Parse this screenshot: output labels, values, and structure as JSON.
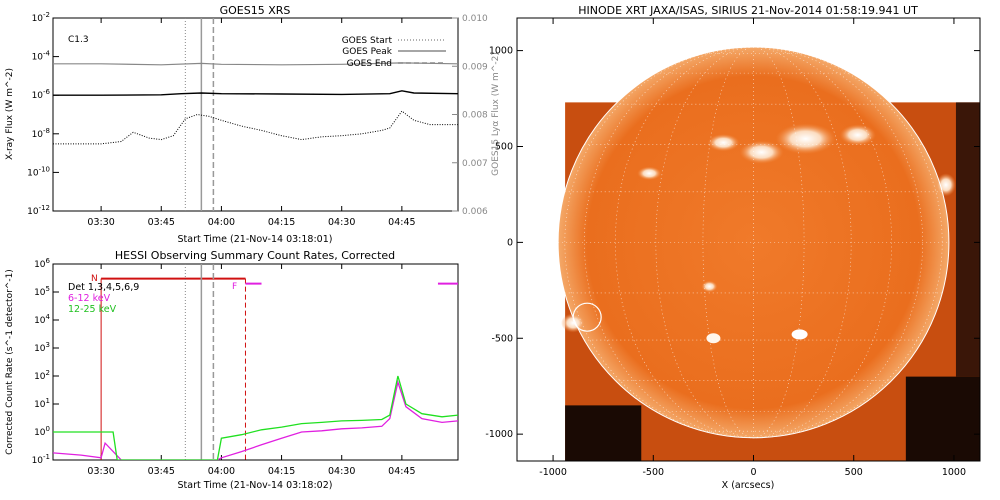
{
  "chart_data": [
    {
      "type": "line",
      "title": "GOES15 XRS",
      "xlabel": "Start Time (21-Nov-14 03:18:01)",
      "ylabel": "X-ray Flux (W m^-2)",
      "ylabel_right": "GOES15 Lyα Flux (W m^-2)",
      "x_ticks": [
        "03:30",
        "03:45",
        "04:00",
        "04:15",
        "04:30",
        "04:45"
      ],
      "y_ticks": [
        "10^-2",
        "10^-4",
        "10^-6",
        "10^-8",
        "10^-10",
        "10^-12"
      ],
      "y_ticks_right": [
        "0.010",
        "0.009",
        "0.008",
        "0.007",
        "0.006"
      ],
      "flare_class": "C1.3",
      "legend": [
        "GOES Start",
        "GOES Peak",
        "GOES End"
      ],
      "markers": {
        "start": "03:51",
        "peak": "03:55",
        "end": "03:58"
      },
      "colors": {
        "lya": "#888888",
        "long": "#000000",
        "short": "#000000"
      },
      "series": [
        {
          "name": "",
          "style": "gray",
          "x": [
            "03:18",
            "03:30",
            "03:45",
            "03:55",
            "04:00",
            "04:15",
            "04:30",
            "04:45",
            "04:59"
          ],
          "values": [
            0.00905,
            0.00905,
            0.00903,
            0.00906,
            0.00904,
            0.00903,
            0.00904,
            0.00907,
            0.00905
          ]
        },
        {
          "name": "",
          "style": "solid",
          "x": [
            "03:18",
            "03:30",
            "03:45",
            "03:50",
            "03:55",
            "04:00",
            "04:15",
            "04:30",
            "04:42",
            "04:45",
            "04:48",
            "04:59"
          ],
          "values": [
            1e-06,
            1e-06,
            1.05e-06,
            1.2e-06,
            1.3e-06,
            1.2e-06,
            1.15e-06,
            1.1e-06,
            1.2e-06,
            1.7e-06,
            1.3e-06,
            1.2e-06
          ]
        },
        {
          "name": "",
          "style": "dotted",
          "x": [
            "03:18",
            "03:25",
            "03:30",
            "03:35",
            "03:38",
            "03:42",
            "03:45",
            "03:48",
            "03:51",
            "03:54",
            "03:57",
            "04:00",
            "04:05",
            "04:10",
            "04:15",
            "04:20",
            "04:25",
            "04:30",
            "04:35",
            "04:40",
            "04:42",
            "04:45",
            "04:48",
            "04:52",
            "04:59"
          ],
          "values": [
            3e-09,
            3e-09,
            3e-09,
            4e-09,
            1.2e-08,
            6e-09,
            5e-09,
            8e-09,
            6e-08,
            1e-07,
            8e-08,
            5e-08,
            2.5e-08,
            1.5e-08,
            8e-09,
            5e-09,
            7e-09,
            8e-09,
            1e-08,
            1.5e-08,
            2e-08,
            1.5e-07,
            5e-08,
            3e-08,
            3e-08
          ]
        }
      ],
      "xlim": [
        "03:18",
        "04:59"
      ],
      "ylim": [
        1e-12,
        0.01
      ],
      "ylim_right": [
        0.006,
        0.01
      ],
      "yscale": "log"
    },
    {
      "type": "line",
      "title": "HESSI Observing Summary Count Rates, Corrected",
      "xlabel": "Start Time (21-Nov-14 03:18:02)",
      "ylabel": "Corrected Count Rate (s^-1 detector^-1)",
      "x_ticks": [
        "03:30",
        "03:45",
        "04:00",
        "04:15",
        "04:30",
        "04:45"
      ],
      "y_ticks": [
        "10^6",
        "10^5",
        "10^4",
        "10^3",
        "10^2",
        "10^1",
        "10^0",
        "10^-1"
      ],
      "legend": [
        {
          "label": "Det 1,3,4,5,6,9",
          "color": "#000000"
        },
        {
          "label": "6-12 keV",
          "color": "#e020e0"
        },
        {
          "label": "12-25 keV",
          "color": "#20e020"
        }
      ],
      "flags": {
        "night_label": "N",
        "flare_label": "F"
      },
      "markers": {
        "night_start": "03:30",
        "start": "03:51",
        "peak": "03:55",
        "end": "03:58",
        "flare_end": "04:06"
      },
      "colors": {
        "low": "#e020e0",
        "high": "#20e020",
        "flag": "#d01010"
      },
      "series": [
        {
          "name": "6-12 keV",
          "x": [
            "03:18",
            "03:25",
            "03:30",
            "03:31",
            "03:35",
            "03:40",
            "03:45",
            "03:50",
            "03:55",
            "03:59",
            "04:00",
            "04:05",
            "04:10",
            "04:15",
            "04:20",
            "04:25",
            "04:30",
            "04:35",
            "04:40",
            "04:42",
            "04:44",
            "04:46",
            "04:50",
            "04:55",
            "04:59"
          ],
          "values": [
            0.18,
            0.15,
            0.12,
            0.4,
            0.1,
            0.1,
            0.1,
            0.1,
            0.1,
            0.1,
            0.12,
            0.2,
            0.35,
            0.6,
            1.0,
            1.1,
            1.3,
            1.4,
            1.6,
            3.0,
            60,
            8,
            3,
            2.2,
            2.5
          ]
        },
        {
          "name": "12-25 keV",
          "x": [
            "03:18",
            "03:25",
            "03:30",
            "03:33",
            "03:34",
            "03:40",
            "03:45",
            "03:50",
            "03:55",
            "03:59",
            "04:00",
            "04:05",
            "04:10",
            "04:15",
            "04:20",
            "04:25",
            "04:30",
            "04:35",
            "04:40",
            "04:42",
            "04:44",
            "04:46",
            "04:50",
            "04:55",
            "04:59"
          ],
          "values": [
            1.0,
            1.0,
            1.0,
            1.0,
            0.1,
            0.1,
            0.1,
            0.1,
            0.1,
            0.1,
            0.6,
            0.8,
            1.2,
            1.5,
            2.0,
            2.2,
            2.5,
            2.6,
            2.8,
            4.0,
            100,
            10,
            4.5,
            3.5,
            4.0
          ]
        }
      ],
      "xlim": [
        "03:18",
        "04:59"
      ],
      "ylim": [
        0.1,
        1000000.0
      ],
      "yscale": "log"
    },
    {
      "type": "heatmap",
      "title": "HINODE XRT JAXA/ISAS, SIRIUS 21-Nov-2014 01:58:19.941 UT",
      "xlabel": "X (arcsecs)",
      "ylabel": "",
      "x_ticks": [
        "-1000",
        "-500",
        "0",
        "500",
        "1000"
      ],
      "y_ticks": [
        "1000",
        "500",
        "0",
        "-500",
        "-1000"
      ],
      "xlim": [
        -1180,
        1130
      ],
      "ylim": [
        -1140,
        1170
      ],
      "solar_radius": 975,
      "colors": {
        "disk": "#e86a1c",
        "limb": "#ffffff",
        "bright": "#fff2e0"
      }
    }
  ]
}
